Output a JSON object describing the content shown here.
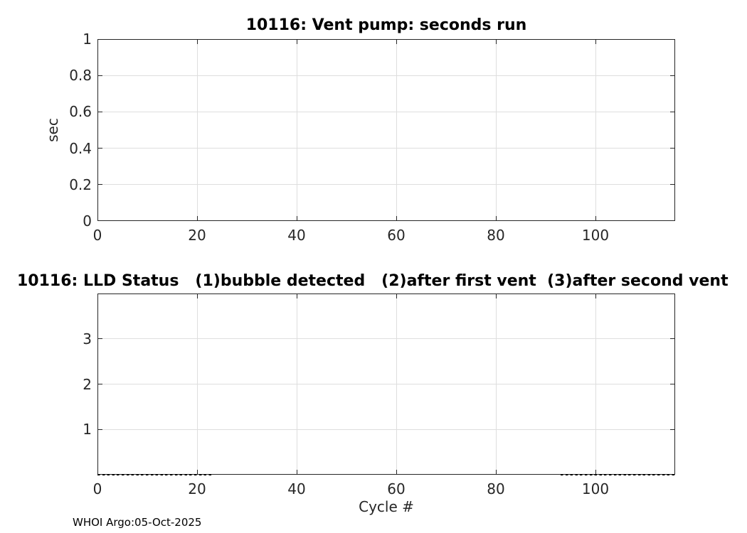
{
  "figure": {
    "footer": "WHOI Argo:05-Oct-2025",
    "background": "#ffffff",
    "axis_color": "#262626",
    "grid_color": "#dedede",
    "dash_color": "#000000"
  },
  "chart_data": [
    {
      "type": "line",
      "title": "10116: Vent pump: seconds run",
      "ylabel": "sec",
      "xlabel": "",
      "xlim": [
        0,
        116
      ],
      "ylim": [
        0,
        1
      ],
      "xticks": [
        0,
        20,
        40,
        60,
        80,
        100
      ],
      "yticks": [
        0,
        0.2,
        0.4,
        0.6,
        0.8,
        1
      ],
      "grid": true,
      "legend": null,
      "series": []
    },
    {
      "type": "line",
      "title": "10116: LLD Status   (1)bubble detected   (2)after first vent  (3)after second vent",
      "ylabel": "",
      "xlabel": "Cycle #",
      "xlim": [
        0,
        116
      ],
      "ylim": [
        0,
        4
      ],
      "xticks": [
        0,
        20,
        40,
        60,
        80,
        100
      ],
      "yticks": [
        1,
        2,
        3
      ],
      "grid": true,
      "legend": null,
      "series": [
        {
          "name": "LLD status",
          "style": "dashed",
          "color": "#000000",
          "segments": [
            {
              "x": [
                0,
                23
              ],
              "y": 0
            },
            {
              "x": [
                93,
                116
              ],
              "y": 0
            }
          ]
        }
      ]
    }
  ]
}
